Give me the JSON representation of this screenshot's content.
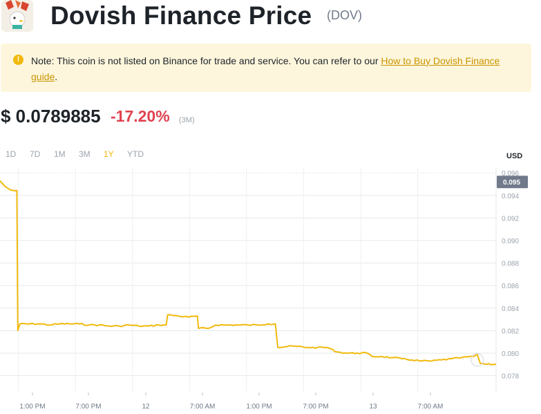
{
  "header": {
    "title": "Dovish Finance Price",
    "symbol": "(DOV)"
  },
  "notice": {
    "text": "Note: This coin is not listed on Binance for trade and service. You can refer to our ",
    "link": "How to Buy Dovish Finance guide",
    "suffix": "."
  },
  "price": {
    "value": "$ 0.0789885",
    "change": "-17.20%",
    "period": "(3M)"
  },
  "ranges": [
    {
      "label": "1D",
      "active": false
    },
    {
      "label": "7D",
      "active": false
    },
    {
      "label": "1M",
      "active": false
    },
    {
      "label": "3M",
      "active": false
    },
    {
      "label": "1Y",
      "active": true
    },
    {
      "label": "YTD",
      "active": false
    }
  ],
  "colors": {
    "line": "#f0b90b",
    "negative": "#e0424f",
    "grid": "#e6e8ea",
    "badge": "#707a8a"
  },
  "chart_data": {
    "type": "line",
    "unit_label": "USD",
    "current_value_label": "0.095",
    "ylim": [
      0.0765,
      0.0965
    ],
    "yticks": [
      "0.096",
      "0.094",
      "0.092",
      "0.090",
      "0.088",
      "0.086",
      "0.084",
      "0.082",
      "0.080",
      "0.078"
    ],
    "ytick_values": [
      0.096,
      0.094,
      0.092,
      0.09,
      0.088,
      0.086,
      0.084,
      0.082,
      0.08,
      0.078
    ],
    "xticks": [
      "1:00 PM",
      "7:00 PM",
      "12",
      "7:00 AM",
      "1:00 PM",
      "7:00 PM",
      "13",
      "7:00 AM"
    ],
    "xtick_positions": [
      0.065,
      0.18,
      0.295,
      0.41,
      0.525,
      0.64,
      0.755,
      0.87
    ],
    "grid": true,
    "series": [
      {
        "values": [
          [
            0.0,
            0.0953
          ],
          [
            0.01,
            0.0948
          ],
          [
            0.02,
            0.0945
          ],
          [
            0.032,
            0.0944
          ],
          [
            0.034,
            0.0944
          ],
          [
            0.036,
            0.082
          ],
          [
            0.04,
            0.0826
          ],
          [
            0.06,
            0.0826
          ],
          [
            0.08,
            0.0826
          ],
          [
            0.1,
            0.0825
          ],
          [
            0.12,
            0.0826
          ],
          [
            0.14,
            0.0826
          ],
          [
            0.16,
            0.0826
          ],
          [
            0.18,
            0.0825
          ],
          [
            0.2,
            0.0825
          ],
          [
            0.22,
            0.0824
          ],
          [
            0.24,
            0.0824
          ],
          [
            0.26,
            0.0825
          ],
          [
            0.28,
            0.0824
          ],
          [
            0.3,
            0.0824
          ],
          [
            0.32,
            0.0825
          ],
          [
            0.335,
            0.0825
          ],
          [
            0.338,
            0.0834
          ],
          [
            0.36,
            0.0833
          ],
          [
            0.38,
            0.0832
          ],
          [
            0.398,
            0.0833
          ],
          [
            0.4,
            0.0822
          ],
          [
            0.42,
            0.0822
          ],
          [
            0.435,
            0.0825
          ],
          [
            0.46,
            0.0825
          ],
          [
            0.48,
            0.0825
          ],
          [
            0.5,
            0.0825
          ],
          [
            0.52,
            0.0825
          ],
          [
            0.54,
            0.0826
          ],
          [
            0.555,
            0.0826
          ],
          [
            0.56,
            0.0805
          ],
          [
            0.58,
            0.0806
          ],
          [
            0.6,
            0.0806
          ],
          [
            0.62,
            0.0805
          ],
          [
            0.64,
            0.0805
          ],
          [
            0.66,
            0.0805
          ],
          [
            0.68,
            0.0801
          ],
          [
            0.7,
            0.08
          ],
          [
            0.72,
            0.08
          ],
          [
            0.74,
            0.08
          ],
          [
            0.75,
            0.0797
          ],
          [
            0.77,
            0.0797
          ],
          [
            0.79,
            0.0796
          ],
          [
            0.81,
            0.0795
          ],
          [
            0.83,
            0.0794
          ],
          [
            0.85,
            0.0793
          ],
          [
            0.87,
            0.0793
          ],
          [
            0.89,
            0.0794
          ],
          [
            0.91,
            0.0795
          ],
          [
            0.93,
            0.0796
          ],
          [
            0.955,
            0.0797
          ],
          [
            0.962,
            0.0799
          ],
          [
            0.968,
            0.0791
          ],
          [
            0.98,
            0.079
          ],
          [
            1.0,
            0.079
          ]
        ]
      }
    ]
  }
}
